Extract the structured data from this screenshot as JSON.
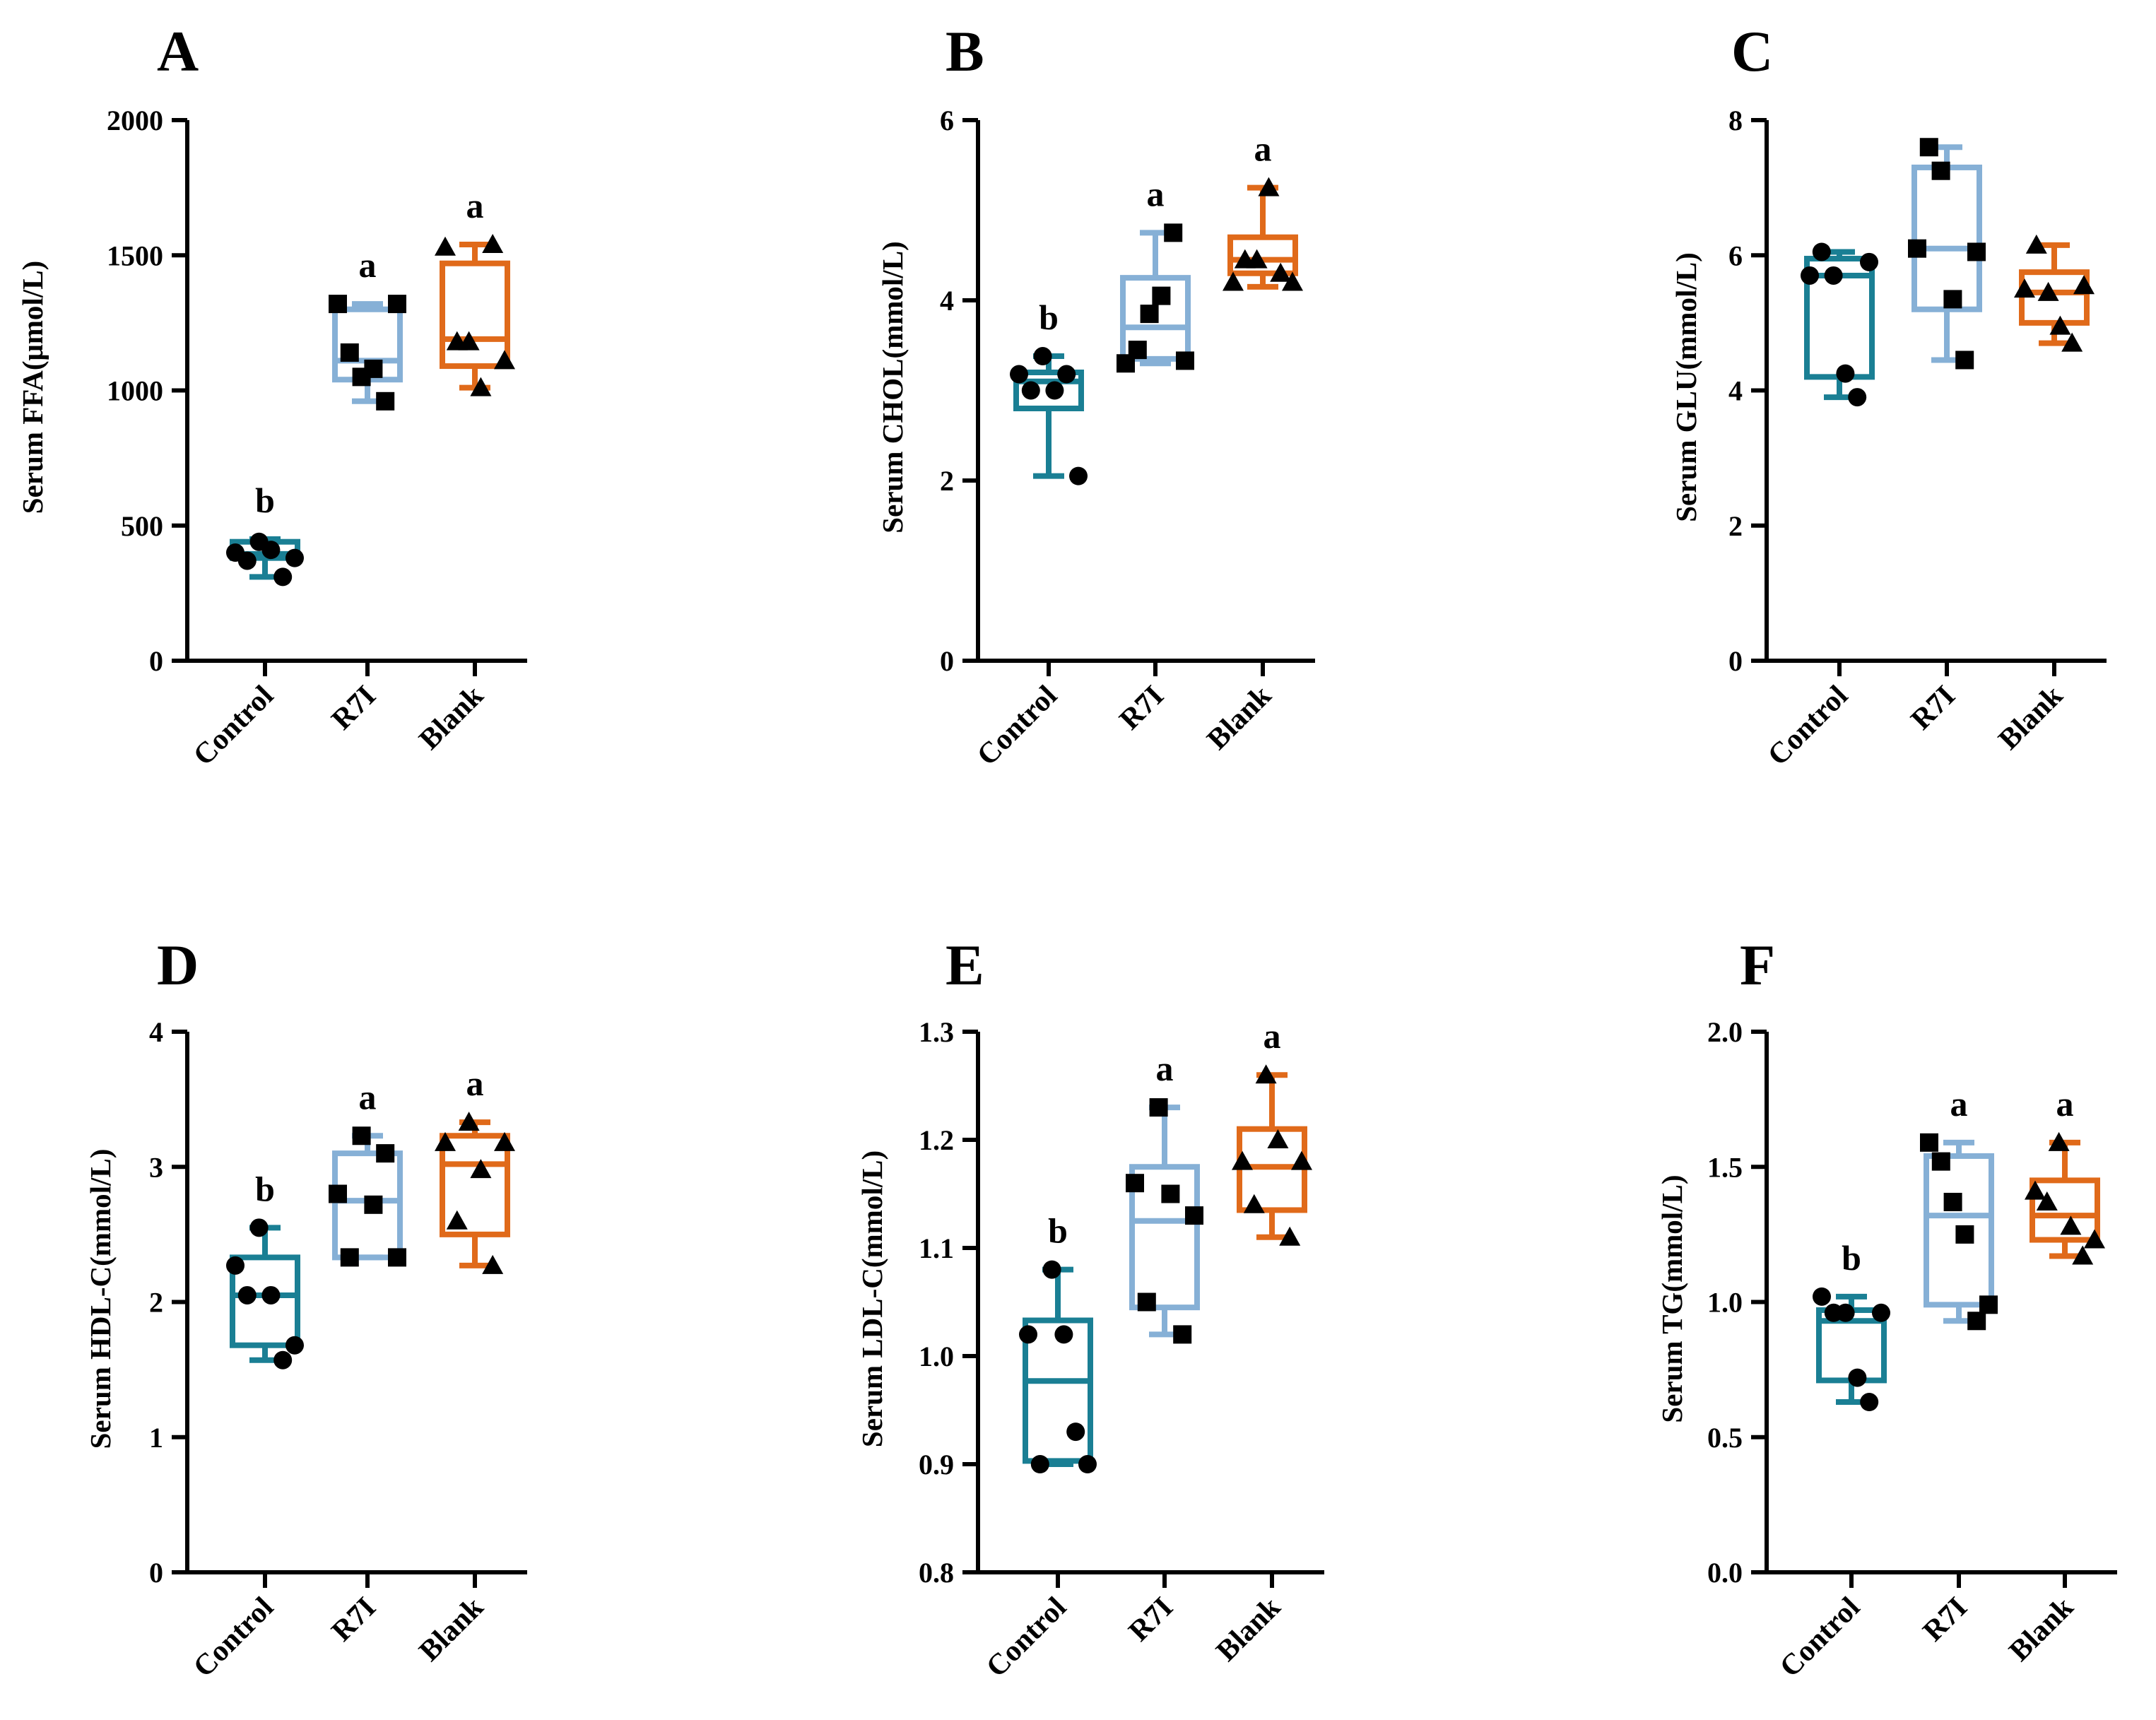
{
  "colors": {
    "Control": "#1a7f94",
    "R7I": "#86b0d6",
    "Blank": "#e06a1a"
  },
  "markers": {
    "Control": "circle",
    "R7I": "square",
    "Blank": "triangle"
  },
  "chart_data": [
    {
      "type": "box",
      "panel": "A",
      "ylabel": "Serum FFA(μmol/L)",
      "categories": [
        "Control",
        "R7I",
        "Blank"
      ],
      "ylim": [
        0,
        2000
      ],
      "yticks": [
        0,
        500,
        1000,
        1500,
        2000
      ],
      "tick_labels": [
        "0",
        "500",
        "1000",
        "1500",
        "2000"
      ],
      "boxes": [
        {
          "min": 310,
          "q1": 380,
          "median": 395,
          "q3": 440,
          "max": 450
        },
        {
          "min": 960,
          "q1": 1040,
          "median": 1110,
          "q3": 1300,
          "max": 1320
        },
        {
          "min": 1010,
          "q1": 1090,
          "median": 1190,
          "q3": 1470,
          "max": 1540
        }
      ],
      "points": [
        [
          400,
          370,
          440,
          410,
          310,
          380
        ],
        [
          1320,
          1140,
          1050,
          1080,
          960,
          1320
        ],
        [
          1530,
          1180,
          1180,
          1010,
          1540,
          1110
        ]
      ],
      "significance": [
        "b",
        "a",
        "a"
      ]
    },
    {
      "type": "box",
      "panel": "B",
      "ylabel": "Serum CHOL(mmol/L)",
      "categories": [
        "Control",
        "R7I",
        "Blank"
      ],
      "ylim": [
        0,
        6
      ],
      "yticks": [
        0,
        2,
        4,
        6
      ],
      "tick_labels": [
        "0",
        "2",
        "4",
        "6"
      ],
      "boxes": [
        {
          "min": 2.05,
          "q1": 2.8,
          "median": 3.1,
          "q3": 3.2,
          "max": 3.38
        },
        {
          "min": 3.3,
          "q1": 3.35,
          "median": 3.7,
          "q3": 4.25,
          "max": 4.75
        },
        {
          "min": 4.15,
          "q1": 4.3,
          "median": 4.45,
          "q3": 4.7,
          "max": 5.25
        }
      ],
      "points": [
        [
          3.18,
          3.0,
          3.38,
          3.0,
          3.18,
          2.05
        ],
        [
          3.3,
          3.45,
          3.85,
          4.05,
          4.75,
          3.33
        ],
        [
          4.2,
          4.45,
          4.45,
          5.25,
          4.3,
          4.2
        ]
      ],
      "significance": [
        "b",
        "a",
        "a"
      ]
    },
    {
      "type": "box",
      "panel": "C",
      "ylabel": "Serum GLU(mmol/L)",
      "categories": [
        "Control",
        "R7I",
        "Blank"
      ],
      "ylim": [
        0,
        8
      ],
      "yticks": [
        0,
        2,
        4,
        6,
        8
      ],
      "tick_labels": [
        "0",
        "2",
        "4",
        "6",
        "8"
      ],
      "boxes": [
        {
          "min": 3.9,
          "q1": 4.2,
          "median": 5.7,
          "q3": 5.95,
          "max": 6.05
        },
        {
          "min": 4.45,
          "q1": 5.2,
          "median": 6.1,
          "q3": 7.3,
          "max": 7.6
        },
        {
          "min": 4.7,
          "q1": 5.0,
          "median": 5.45,
          "q3": 5.75,
          "max": 6.15
        }
      ],
      "points": [
        [
          5.7,
          6.05,
          5.7,
          4.25,
          3.9,
          5.9
        ],
        [
          6.1,
          7.6,
          7.25,
          5.35,
          4.45,
          6.05
        ],
        [
          5.5,
          6.15,
          5.45,
          4.95,
          4.7,
          5.55
        ]
      ],
      "significance": [
        "",
        "",
        ""
      ]
    },
    {
      "type": "box",
      "panel": "D",
      "ylabel": "Serum HDL-C(mmol/L)",
      "categories": [
        "Control",
        "R7I",
        "Blank"
      ],
      "ylim": [
        0,
        4
      ],
      "yticks": [
        0,
        1,
        2,
        3,
        4
      ],
      "tick_labels": [
        "0",
        "1",
        "2",
        "3",
        "4"
      ],
      "boxes": [
        {
          "min": 1.57,
          "q1": 1.68,
          "median": 2.05,
          "q3": 2.33,
          "max": 2.55
        },
        {
          "min": 2.33,
          "q1": 2.33,
          "median": 2.75,
          "q3": 3.1,
          "max": 3.23
        },
        {
          "min": 2.27,
          "q1": 2.5,
          "median": 3.02,
          "q3": 3.23,
          "max": 3.33
        }
      ],
      "points": [
        [
          2.27,
          2.05,
          2.55,
          2.05,
          1.57,
          1.68
        ],
        [
          2.8,
          2.33,
          3.23,
          2.72,
          3.1,
          2.33
        ],
        [
          3.18,
          2.6,
          3.33,
          2.98,
          2.27,
          3.18
        ]
      ],
      "significance": [
        "b",
        "a",
        "a"
      ]
    },
    {
      "type": "box",
      "panel": "E",
      "ylabel": "Serum LDL-C(mmol/L)",
      "categories": [
        "Control",
        "R7I",
        "Blank"
      ],
      "ylim": [
        0.8,
        1.3
      ],
      "yticks": [
        0.8,
        0.9,
        1.0,
        1.1,
        1.2,
        1.3
      ],
      "tick_labels": [
        "0.8",
        "0.9",
        "1.0",
        "1.1",
        "1.2",
        "1.3"
      ],
      "boxes": [
        {
          "min": 0.9,
          "q1": 0.903,
          "median": 0.977,
          "q3": 1.033,
          "max": 1.08
        },
        {
          "min": 1.02,
          "q1": 1.045,
          "median": 1.125,
          "q3": 1.175,
          "max": 1.23
        },
        {
          "min": 1.11,
          "q1": 1.135,
          "median": 1.175,
          "q3": 1.21,
          "max": 1.26
        }
      ],
      "points": [
        [
          1.02,
          0.9,
          1.08,
          1.02,
          0.93,
          0.9
        ],
        [
          1.16,
          1.05,
          1.23,
          1.15,
          1.02,
          1.13
        ],
        [
          1.18,
          1.14,
          1.26,
          1.2,
          1.11,
          1.18
        ]
      ],
      "significance": [
        "b",
        "a",
        "a"
      ]
    },
    {
      "type": "box",
      "panel": "F",
      "ylabel": "Serum TG(mmol/L)",
      "categories": [
        "Control",
        "R7I",
        "Blank"
      ],
      "ylim": [
        0,
        2.0
      ],
      "yticks": [
        0,
        0.5,
        1.0,
        1.5,
        2.0
      ],
      "tick_labels": [
        "0.0",
        "0.5",
        "1.0",
        "1.5",
        "2.0"
      ],
      "boxes": [
        {
          "min": 0.63,
          "q1": 0.71,
          "median": 0.93,
          "q3": 0.97,
          "max": 1.02
        },
        {
          "min": 0.93,
          "q1": 0.99,
          "median": 1.32,
          "q3": 1.54,
          "max": 1.59
        },
        {
          "min": 1.17,
          "q1": 1.23,
          "median": 1.32,
          "q3": 1.45,
          "max": 1.59
        }
      ],
      "points": [
        [
          1.02,
          0.96,
          0.96,
          0.72,
          0.63,
          0.96
        ],
        [
          1.59,
          1.52,
          1.37,
          1.25,
          0.93,
          0.99
        ],
        [
          1.41,
          1.37,
          1.59,
          1.28,
          1.17,
          1.23
        ]
      ],
      "significance": [
        "b",
        "a",
        "a"
      ]
    }
  ]
}
